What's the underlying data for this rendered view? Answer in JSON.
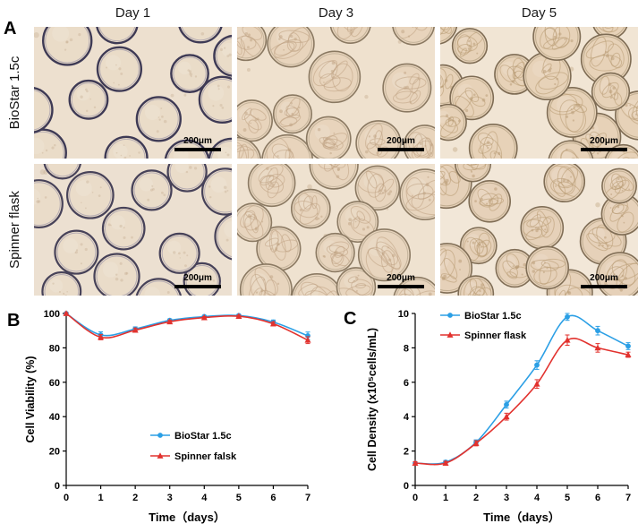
{
  "figure": {
    "panel_a": {
      "label": "A",
      "column_headers": [
        "Day 1",
        "Day 3",
        "Day 5"
      ],
      "row_labels": [
        "BioStar 1.5c",
        "Spinner flask"
      ],
      "scale_bar_label": "200μm",
      "micrographs": [
        {
          "row": "BioStar 1.5c",
          "day": "Day 1",
          "seed": 7,
          "n": 14,
          "rmin": 20,
          "rmax": 28,
          "bg": "#EDE0CF",
          "fill": "#EADCC8",
          "ring": "#3E3A55",
          "ringWidth": 2.4,
          "innerRing": "#8D86A0",
          "texture": false,
          "texColor": "#C3AA8C",
          "spacing": 0.95
        },
        {
          "row": "BioStar 1.5c",
          "day": "Day 3",
          "seed": 19,
          "n": 13,
          "rmin": 21,
          "rmax": 29,
          "bg": "#EFE1CE",
          "fill": "#E8D4BC",
          "ring": "#8A7962",
          "ringWidth": 1.6,
          "innerRing": "#A8997F",
          "texture": true,
          "texColor": "#BFA383",
          "spacing": 0.92
        },
        {
          "row": "BioStar 1.5c",
          "day": "Day 5",
          "seed": 31,
          "n": 17,
          "rmin": 19,
          "rmax": 28,
          "bg": "#F1E5D4",
          "fill": "#E7D2B8",
          "ring": "#7E6C54",
          "ringWidth": 1.6,
          "innerRing": "#A3906F",
          "texture": true,
          "texColor": "#B89A73",
          "spacing": 0.72
        },
        {
          "row": "Spinner flask",
          "day": "Day 1",
          "seed": 43,
          "n": 14,
          "rmin": 20,
          "rmax": 28,
          "bg": "#ECE0D1",
          "fill": "#EADCC9",
          "ring": "#474259",
          "ringWidth": 2.2,
          "innerRing": "#8D86A0",
          "texture": false,
          "texColor": "#C3AA8C",
          "spacing": 0.95
        },
        {
          "row": "Spinner flask",
          "day": "Day 3",
          "seed": 57,
          "n": 14,
          "rmin": 21,
          "rmax": 29,
          "bg": "#EFE2D0",
          "fill": "#E8D5BE",
          "ring": "#8B7A63",
          "ringWidth": 1.6,
          "innerRing": "#A8997F",
          "texture": true,
          "texColor": "#BFA383",
          "spacing": 0.9
        },
        {
          "row": "Spinner flask",
          "day": "Day 5",
          "seed": 69,
          "n": 15,
          "rmin": 19,
          "rmax": 29,
          "bg": "#F2E7D8",
          "fill": "#E6D1B9",
          "ring": "#806E56",
          "ringWidth": 1.6,
          "innerRing": "#A3906F",
          "texture": true,
          "texColor": "#B89A73",
          "spacing": 0.75
        }
      ]
    },
    "panel_b": {
      "label": "B"
    },
    "panel_c": {
      "label": "C"
    }
  },
  "chart_data": [
    {
      "type": "line",
      "panel": "B",
      "title": "",
      "xlabel": "Time（days）",
      "ylabel": "Cell Viability (%)",
      "x": [
        0,
        1,
        2,
        3,
        4,
        5,
        6,
        7
      ],
      "xlim": [
        0,
        7
      ],
      "ylim": [
        0,
        100
      ],
      "xticks": [
        0,
        1,
        2,
        3,
        4,
        5,
        6,
        7
      ],
      "yticks": [
        0,
        20,
        40,
        60,
        80,
        100
      ],
      "grid": false,
      "legend_position": "inside-bottom-right",
      "series": [
        {
          "name": "BioStar 1.5c",
          "color": "#2B9FE5",
          "marker": "circle",
          "values": [
            100,
            87.5,
            91,
            96,
            98.2,
            98.8,
            95,
            87
          ],
          "errors": [
            0.5,
            1.8,
            1.2,
            0.8,
            0.6,
            0.6,
            1.2,
            2.2
          ]
        },
        {
          "name": "Spinner falsk",
          "color": "#E2322E",
          "marker": "triangle",
          "values": [
            100,
            86.2,
            90.3,
            95.2,
            97.6,
            98.4,
            94,
            84.5
          ],
          "errors": [
            0.5,
            1.5,
            1.2,
            0.8,
            0.6,
            0.6,
            1.2,
            2.0
          ]
        }
      ]
    },
    {
      "type": "line",
      "panel": "C",
      "title": "",
      "xlabel": "Time（days）",
      "ylabel": "Cell Density (x10⁵cells/mL)",
      "x": [
        0,
        1,
        2,
        3,
        4,
        5,
        6,
        7
      ],
      "xlim": [
        0,
        7
      ],
      "ylim": [
        0,
        10
      ],
      "xticks": [
        0,
        1,
        2,
        3,
        4,
        5,
        6,
        7
      ],
      "yticks": [
        0,
        2,
        4,
        6,
        8,
        10
      ],
      "grid": false,
      "legend_position": "inside-top-left",
      "series": [
        {
          "name": "BioStar 1.5c",
          "color": "#2B9FE5",
          "marker": "circle",
          "values": [
            1.3,
            1.35,
            2.5,
            4.7,
            7.0,
            9.8,
            9.0,
            8.1
          ],
          "errors": [
            0.08,
            0.1,
            0.15,
            0.2,
            0.25,
            0.2,
            0.25,
            0.2
          ]
        },
        {
          "name": "Spinner flask",
          "color": "#E2322E",
          "marker": "triangle",
          "values": [
            1.3,
            1.3,
            2.45,
            4.0,
            5.9,
            8.45,
            8.0,
            7.6
          ],
          "errors": [
            0.08,
            0.1,
            0.15,
            0.2,
            0.25,
            0.3,
            0.25,
            0.15
          ]
        }
      ]
    }
  ]
}
